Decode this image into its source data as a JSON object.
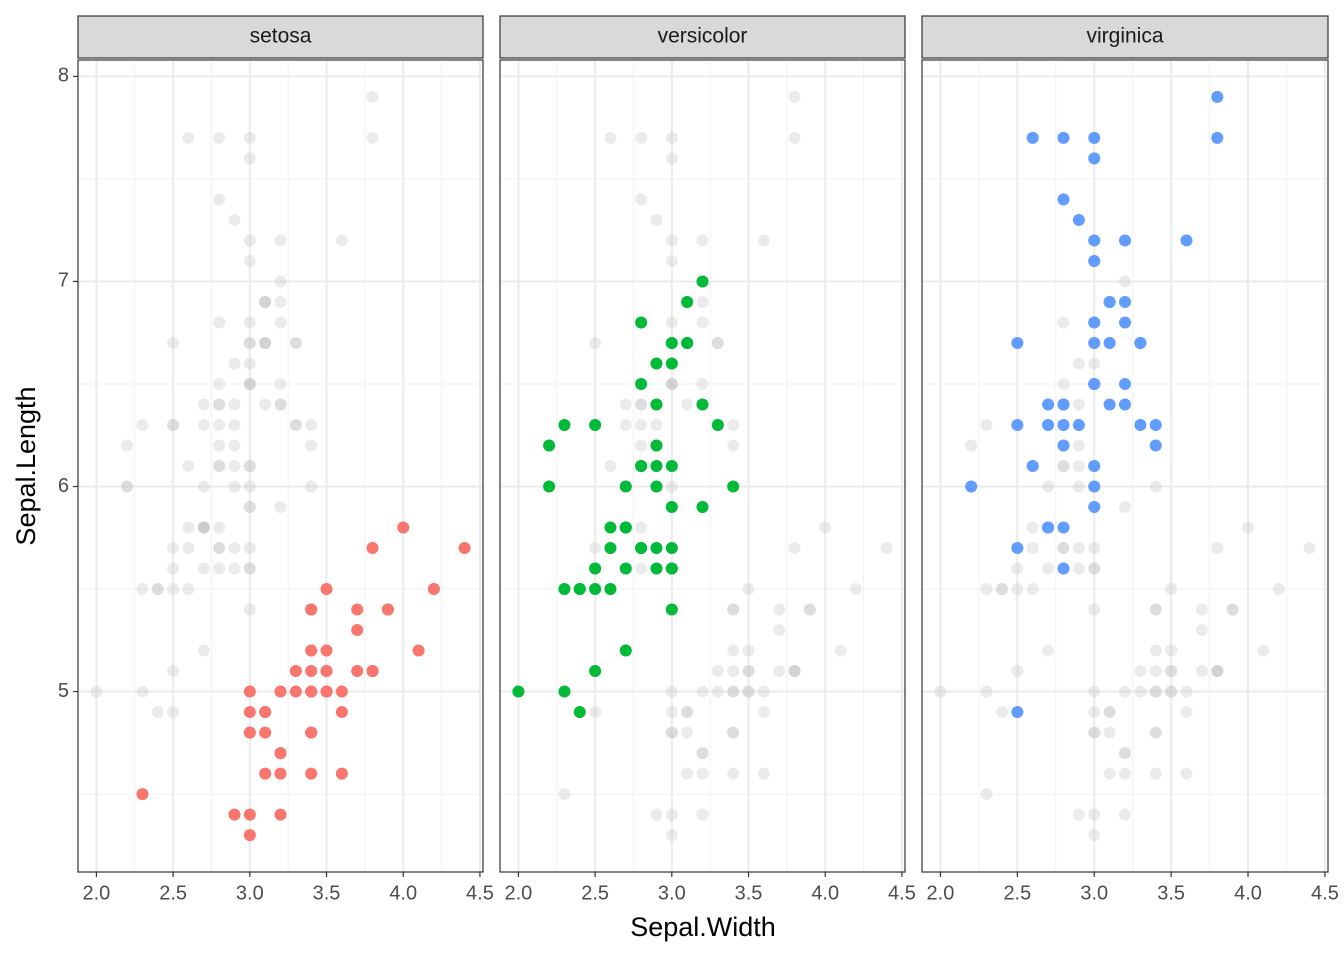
{
  "chart_data": {
    "type": "scatter",
    "x_label": "Sepal.Width",
    "y_label": "Sepal.Length",
    "xlim": [
      1.88,
      4.52
    ],
    "xticks": [
      {
        "value": 2,
        "label": "2.0"
      },
      2.5,
      {
        "value": 3,
        "label": "3.0"
      },
      3.5,
      {
        "value": 4,
        "label": "4.0"
      },
      4.5
    ],
    "ylim": [
      4.12,
      8.08
    ],
    "yticks": [
      5,
      6,
      7,
      8
    ],
    "grid": true,
    "minor_grid": true,
    "background_color": "#bdbdbd",
    "facets": [
      {
        "name": "setosa",
        "color": "#F8766D",
        "x": [
          3.5,
          3.0,
          3.2,
          3.1,
          3.6,
          3.9,
          3.4,
          3.4,
          2.9,
          3.1,
          3.7,
          3.4,
          3.0,
          3.0,
          4.0,
          4.4,
          3.9,
          3.5,
          3.8,
          3.8,
          3.4,
          3.7,
          3.6,
          3.3,
          3.4,
          3.0,
          3.4,
          3.5,
          3.4,
          3.2,
          3.1,
          3.4,
          4.1,
          4.2,
          3.1,
          3.2,
          3.5,
          3.6,
          3.0,
          3.4,
          3.5,
          2.3,
          3.2,
          3.5,
          3.8,
          3.0,
          3.8,
          3.2,
          3.7,
          3.3
        ],
        "values": [
          5.1,
          4.9,
          4.7,
          4.6,
          5.0,
          5.4,
          4.6,
          5.0,
          4.4,
          4.9,
          5.4,
          4.8,
          4.8,
          4.3,
          5.8,
          5.7,
          5.4,
          5.1,
          5.7,
          5.1,
          5.4,
          5.1,
          4.6,
          5.1,
          4.8,
          5.0,
          5.0,
          5.2,
          5.2,
          4.7,
          4.8,
          5.4,
          5.2,
          5.5,
          4.9,
          5.0,
          5.5,
          4.9,
          4.4,
          5.1,
          5.0,
          4.5,
          4.4,
          5.0,
          5.1,
          4.8,
          5.1,
          4.6,
          5.3,
          5.0
        ]
      },
      {
        "name": "versicolor",
        "color": "#00BA38",
        "x": [
          3.2,
          3.2,
          3.1,
          2.3,
          2.8,
          2.8,
          3.3,
          2.4,
          2.9,
          2.7,
          2.0,
          3.0,
          2.2,
          2.9,
          2.9,
          3.1,
          3.0,
          2.7,
          2.2,
          2.5,
          3.2,
          2.8,
          2.5,
          2.8,
          2.9,
          3.0,
          2.8,
          3.0,
          2.9,
          2.6,
          2.4,
          2.4,
          2.7,
          2.7,
          3.0,
          3.4,
          3.1,
          2.3,
          3.0,
          2.5,
          2.6,
          3.0,
          2.6,
          2.3,
          2.7,
          3.0,
          2.9,
          2.9,
          2.5,
          2.8
        ],
        "values": [
          7.0,
          6.4,
          6.9,
          5.5,
          6.5,
          5.7,
          6.3,
          4.9,
          6.6,
          5.2,
          5.0,
          5.9,
          6.0,
          6.1,
          5.6,
          6.7,
          5.6,
          5.8,
          6.2,
          5.6,
          5.9,
          6.1,
          6.3,
          6.1,
          6.4,
          6.6,
          6.8,
          6.7,
          6.0,
          5.7,
          5.5,
          5.5,
          5.8,
          6.0,
          5.4,
          6.0,
          6.7,
          6.3,
          5.6,
          5.5,
          5.5,
          6.1,
          5.8,
          5.0,
          5.6,
          5.7,
          5.7,
          6.2,
          5.1,
          5.7
        ]
      },
      {
        "name": "virginica",
        "color": "#619CFF",
        "x": [
          3.3,
          2.7,
          3.0,
          2.9,
          3.0,
          3.0,
          2.5,
          2.9,
          2.5,
          3.6,
          3.2,
          2.7,
          3.0,
          2.5,
          2.8,
          3.2,
          3.0,
          3.8,
          2.6,
          2.2,
          3.2,
          2.8,
          2.8,
          2.7,
          3.3,
          3.2,
          2.8,
          3.0,
          2.8,
          3.0,
          2.8,
          3.8,
          2.8,
          2.8,
          2.6,
          3.0,
          3.4,
          3.1,
          3.0,
          3.1,
          3.1,
          3.1,
          2.7,
          3.2,
          3.3,
          3.0,
          2.5,
          3.0,
          3.4,
          3.0
        ],
        "values": [
          6.3,
          5.8,
          7.1,
          6.3,
          6.5,
          7.6,
          4.9,
          7.3,
          6.7,
          7.2,
          6.5,
          6.4,
          6.8,
          5.7,
          5.8,
          6.4,
          6.5,
          7.7,
          7.7,
          6.0,
          6.9,
          5.6,
          7.7,
          6.3,
          6.7,
          7.2,
          6.2,
          6.1,
          6.4,
          7.2,
          7.4,
          7.9,
          6.4,
          6.3,
          6.1,
          7.7,
          6.3,
          6.4,
          6.0,
          6.9,
          6.7,
          6.9,
          5.8,
          6.8,
          6.7,
          6.7,
          6.3,
          6.5,
          6.2,
          5.9
        ]
      }
    ]
  }
}
